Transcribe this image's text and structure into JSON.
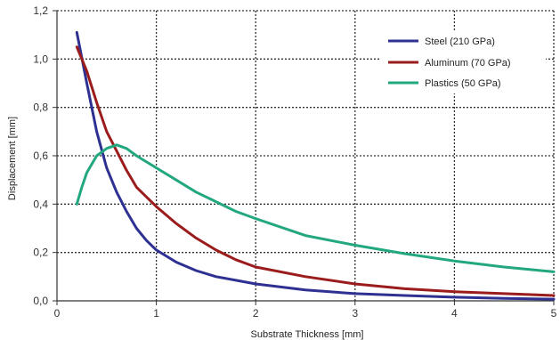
{
  "chart_data": {
    "type": "line",
    "title": "",
    "xlabel": "Substrate Thickness [mm]",
    "ylabel": "Displacement [mm]",
    "xlim": [
      0,
      5
    ],
    "ylim": [
      0,
      1.2
    ],
    "grid": true,
    "grid_style": "dotted",
    "legend_position": "top-right",
    "x_ticks": [
      0,
      1,
      2,
      3,
      4,
      5
    ],
    "x_tick_labels": [
      "0",
      "1",
      "2",
      "3",
      "4",
      "5"
    ],
    "y_ticks": [
      0,
      0.2,
      0.4,
      0.6,
      0.8,
      1.0,
      1.2
    ],
    "y_tick_labels": [
      "0,0",
      "0,2",
      "0,4",
      "0,6",
      "0,8",
      "1,0",
      "1,2"
    ],
    "series": [
      {
        "name": "Steel (210 GPa)",
        "color": "#2e3192",
        "points": [
          [
            0.2,
            1.11
          ],
          [
            0.3,
            0.9
          ],
          [
            0.4,
            0.7
          ],
          [
            0.5,
            0.55
          ],
          [
            0.6,
            0.45
          ],
          [
            0.7,
            0.37
          ],
          [
            0.8,
            0.3
          ],
          [
            0.9,
            0.25
          ],
          [
            1.0,
            0.21
          ],
          [
            1.2,
            0.16
          ],
          [
            1.4,
            0.125
          ],
          [
            1.6,
            0.1
          ],
          [
            1.8,
            0.085
          ],
          [
            2.0,
            0.07
          ],
          [
            2.5,
            0.045
          ],
          [
            3.0,
            0.03
          ],
          [
            3.5,
            0.022
          ],
          [
            4.0,
            0.015
          ],
          [
            4.5,
            0.01
          ],
          [
            5.0,
            0.007
          ]
        ]
      },
      {
        "name": "Aluminum (70 GPa)",
        "color": "#9b1c1c",
        "points": [
          [
            0.2,
            1.05
          ],
          [
            0.3,
            0.95
          ],
          [
            0.4,
            0.82
          ],
          [
            0.5,
            0.7
          ],
          [
            0.6,
            0.62
          ],
          [
            0.7,
            0.54
          ],
          [
            0.8,
            0.47
          ],
          [
            0.9,
            0.43
          ],
          [
            1.0,
            0.39
          ],
          [
            1.2,
            0.32
          ],
          [
            1.4,
            0.26
          ],
          [
            1.6,
            0.21
          ],
          [
            1.8,
            0.17
          ],
          [
            2.0,
            0.14
          ],
          [
            2.5,
            0.1
          ],
          [
            3.0,
            0.07
          ],
          [
            3.5,
            0.05
          ],
          [
            4.0,
            0.038
          ],
          [
            4.5,
            0.03
          ],
          [
            5.0,
            0.022
          ]
        ]
      },
      {
        "name": "Plastics (50 GPa)",
        "color": "#22a77f",
        "points": [
          [
            0.2,
            0.4
          ],
          [
            0.25,
            0.47
          ],
          [
            0.3,
            0.53
          ],
          [
            0.4,
            0.6
          ],
          [
            0.5,
            0.63
          ],
          [
            0.6,
            0.645
          ],
          [
            0.7,
            0.63
          ],
          [
            0.8,
            0.6
          ],
          [
            1.0,
            0.55
          ],
          [
            1.2,
            0.5
          ],
          [
            1.4,
            0.45
          ],
          [
            1.6,
            0.41
          ],
          [
            1.8,
            0.37
          ],
          [
            2.0,
            0.34
          ],
          [
            2.5,
            0.27
          ],
          [
            3.0,
            0.23
          ],
          [
            3.5,
            0.195
          ],
          [
            4.0,
            0.165
          ],
          [
            4.5,
            0.14
          ],
          [
            5.0,
            0.12
          ]
        ]
      }
    ]
  }
}
